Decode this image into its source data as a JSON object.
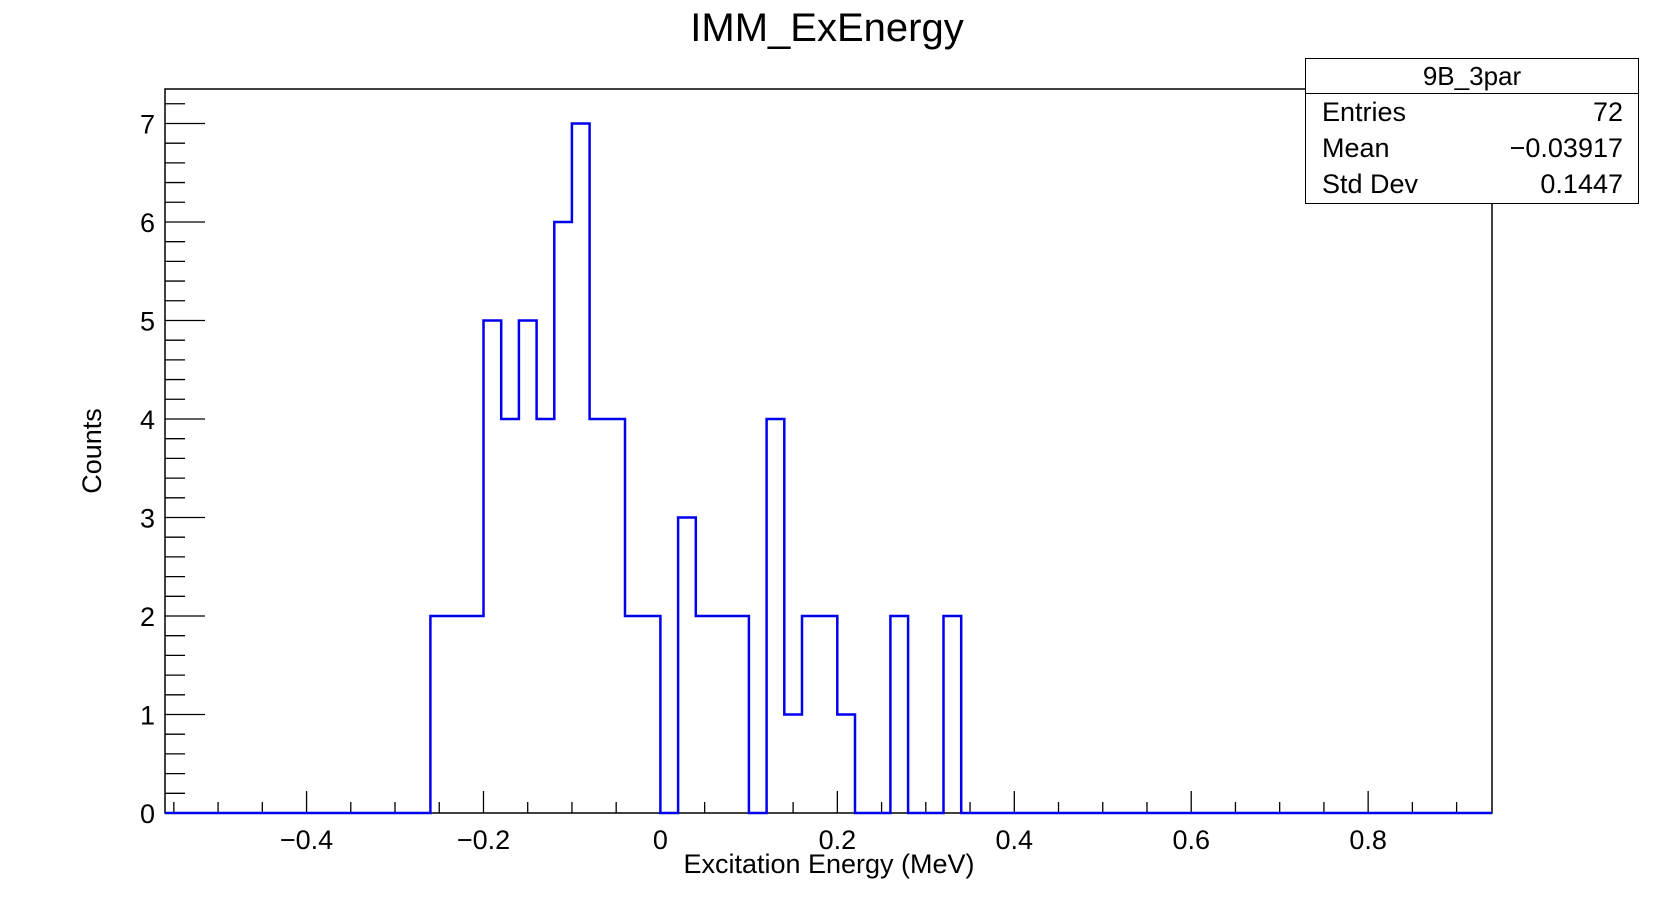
{
  "chart_data": {
    "type": "histogram",
    "title": "IMM_ExEnergy",
    "xlabel": "Excitation Energy (MeV)",
    "ylabel": "Counts",
    "xlim": [
      -0.56,
      0.94
    ],
    "ylim": [
      0,
      7.35
    ],
    "x_ticks": [
      -0.4,
      -0.2,
      0,
      0.2,
      0.4,
      0.6,
      0.8
    ],
    "x_tick_labels": [
      "−0.4",
      "−0.2",
      "0",
      "0.2",
      "0.4",
      "0.6",
      "0.8"
    ],
    "y_ticks": [
      0,
      1,
      2,
      3,
      4,
      5,
      6,
      7
    ],
    "y_tick_labels": [
      "0",
      "1",
      "2",
      "3",
      "4",
      "5",
      "6",
      "7"
    ],
    "line_color": "#0000ee",
    "bins": [
      {
        "x0": -0.26,
        "x1": -0.24,
        "count": 2
      },
      {
        "x0": -0.24,
        "x1": -0.22,
        "count": 2
      },
      {
        "x0": -0.22,
        "x1": -0.2,
        "count": 2
      },
      {
        "x0": -0.2,
        "x1": -0.18,
        "count": 5
      },
      {
        "x0": -0.18,
        "x1": -0.16,
        "count": 4
      },
      {
        "x0": -0.16,
        "x1": -0.14,
        "count": 5
      },
      {
        "x0": -0.14,
        "x1": -0.12,
        "count": 4
      },
      {
        "x0": -0.12,
        "x1": -0.1,
        "count": 6
      },
      {
        "x0": -0.1,
        "x1": -0.08,
        "count": 7
      },
      {
        "x0": -0.08,
        "x1": -0.06,
        "count": 4
      },
      {
        "x0": -0.06,
        "x1": -0.04,
        "count": 4
      },
      {
        "x0": -0.04,
        "x1": -0.02,
        "count": 2
      },
      {
        "x0": -0.02,
        "x1": 0.0,
        "count": 2
      },
      {
        "x0": 0.0,
        "x1": 0.02,
        "count": 0
      },
      {
        "x0": 0.02,
        "x1": 0.04,
        "count": 3
      },
      {
        "x0": 0.04,
        "x1": 0.06,
        "count": 2
      },
      {
        "x0": 0.06,
        "x1": 0.08,
        "count": 2
      },
      {
        "x0": 0.08,
        "x1": 0.1,
        "count": 2
      },
      {
        "x0": 0.1,
        "x1": 0.12,
        "count": 0
      },
      {
        "x0": 0.12,
        "x1": 0.14,
        "count": 4
      },
      {
        "x0": 0.14,
        "x1": 0.16,
        "count": 1
      },
      {
        "x0": 0.16,
        "x1": 0.18,
        "count": 2
      },
      {
        "x0": 0.18,
        "x1": 0.2,
        "count": 2
      },
      {
        "x0": 0.2,
        "x1": 0.22,
        "count": 1
      },
      {
        "x0": 0.22,
        "x1": 0.24,
        "count": 0
      },
      {
        "x0": 0.24,
        "x1": 0.26,
        "count": 0
      },
      {
        "x0": 0.26,
        "x1": 0.28,
        "count": 2
      },
      {
        "x0": 0.28,
        "x1": 0.3,
        "count": 0
      },
      {
        "x0": 0.3,
        "x1": 0.32,
        "count": 0
      },
      {
        "x0": 0.32,
        "x1": 0.34,
        "count": 2
      }
    ],
    "stats_box": {
      "title": "9B_3par",
      "rows": [
        {
          "label": "Entries",
          "value": "72"
        },
        {
          "label": "Mean",
          "value": "−0.03917"
        },
        {
          "label": "Std Dev",
          "value": "0.1447"
        }
      ]
    }
  }
}
